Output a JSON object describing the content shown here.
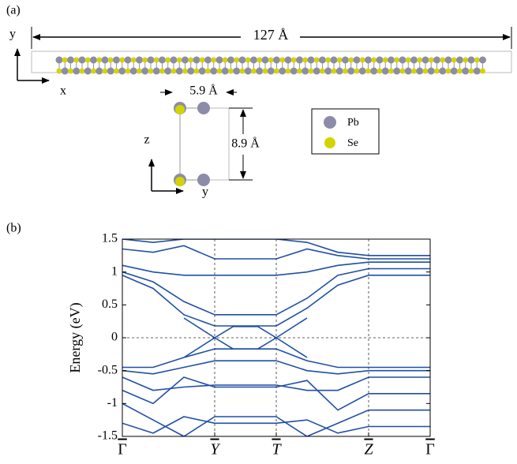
{
  "panel_a": {
    "label": "(a)",
    "length": "127 Å",
    "axis_y": "y",
    "axis_x": "x",
    "width": "5.9 Å",
    "height": "8.9 Å",
    "axis_z": "z",
    "axis_y2": "y",
    "legend": [
      "Pb",
      "Se"
    ]
  },
  "chart_data": {
    "type": "line",
    "label": "(b)",
    "ylabel": "Energy (eV)",
    "color": "#1f4fa8",
    "x": [
      0,
      0.5,
      1.0,
      1.5,
      1.8,
      2.2,
      2.5,
      3.0,
      3.5,
      4.0,
      5.0
    ],
    "xlim": [
      0,
      5
    ],
    "xticks": [
      {
        "value": 0,
        "label": "Γ"
      },
      {
        "value": 1.5,
        "label": "Y"
      },
      {
        "value": 2.5,
        "label": "T"
      },
      {
        "value": 4,
        "label": "Z"
      },
      {
        "value": 5,
        "label": "Γ"
      }
    ],
    "ylim": [
      -1.5,
      1.5
    ],
    "yticks": [
      -1.5,
      -1,
      -0.5,
      0,
      0.5,
      1,
      1.5
    ],
    "zero_line": true,
    "vertical_lines": true,
    "series": [
      {
        "values": [
          0.95,
          0.75,
          0.35,
          0.18,
          0.18,
          0.18,
          0.18,
          0.45,
          0.8,
          0.95,
          0.95
        ]
      },
      {
        "values": [
          1.0,
          0.85,
          0.55,
          0.35,
          0.35,
          0.35,
          0.35,
          0.6,
          0.95,
          1.05,
          1.05
        ]
      },
      {
        "values": [
          1.1,
          1.0,
          0.95,
          0.95,
          0.95,
          0.95,
          0.95,
          1.0,
          1.1,
          1.15,
          1.15
        ]
      },
      {
        "values": [
          1.35,
          1.3,
          1.4,
          1.2,
          1.2,
          1.2,
          1.2,
          1.35,
          1.25,
          1.2,
          1.2
        ]
      },
      {
        "values": [
          1.5,
          1.45,
          1.5,
          1.5,
          1.5,
          1.5,
          1.5,
          1.45,
          1.3,
          1.25,
          1.25
        ]
      },
      {
        "values": [
          null,
          null,
          0.3,
          0,
          -0.17,
          -0.17,
          0,
          0.3,
          null,
          null,
          null
        ]
      },
      {
        "values": [
          null,
          null,
          -0.3,
          0,
          0.17,
          0.17,
          0,
          -0.3,
          null,
          null,
          null
        ]
      },
      {
        "values": [
          -0.45,
          -0.45,
          -0.3,
          -0.17,
          -0.17,
          -0.17,
          -0.17,
          -0.35,
          -0.45,
          -0.45,
          -0.45
        ]
      },
      {
        "values": [
          -0.5,
          -0.55,
          -0.45,
          -0.35,
          -0.35,
          -0.35,
          -0.35,
          -0.5,
          -0.55,
          -0.5,
          -0.5
        ]
      },
      {
        "values": [
          -0.6,
          -0.8,
          -0.75,
          -0.72,
          -0.72,
          -0.72,
          -0.72,
          -0.8,
          -0.8,
          -0.6,
          -0.6
        ]
      },
      {
        "values": [
          -0.8,
          -1.0,
          -0.6,
          -0.75,
          -0.75,
          -0.75,
          -0.75,
          -0.65,
          -1.1,
          -0.85,
          -0.85
        ]
      },
      {
        "values": [
          -1.0,
          -1.25,
          -1.5,
          -1.2,
          -1.2,
          -1.2,
          -1.2,
          -1.5,
          -1.3,
          -1.1,
          -1.1
        ]
      },
      {
        "values": [
          -1.3,
          -1.45,
          -1.2,
          -1.3,
          -1.3,
          -1.3,
          -1.3,
          -1.25,
          -1.45,
          -1.35,
          -1.35
        ]
      }
    ]
  }
}
